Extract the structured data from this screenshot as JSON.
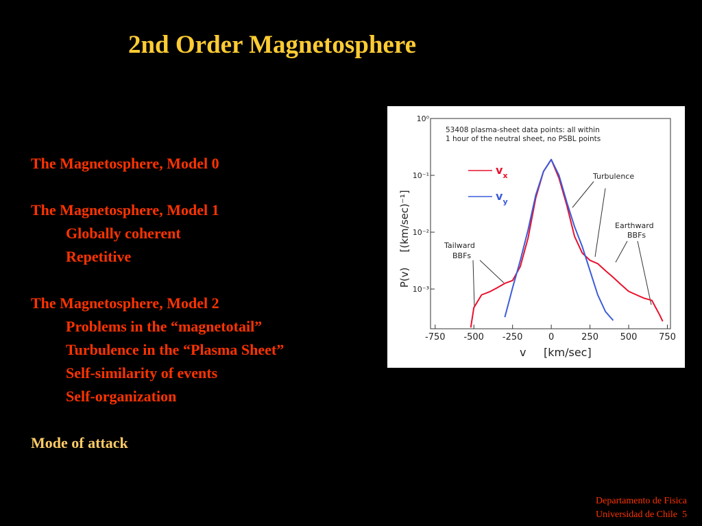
{
  "slide": {
    "title": "2nd Order Magnetosphere",
    "items": [
      {
        "text": "The Magnetosphere, Model 0",
        "sub": []
      },
      {
        "text": "The Magnetosphere, Model 1",
        "sub": [
          "Globally coherent",
          "Repetitive"
        ]
      },
      {
        "text": "The Magnetosphere, Model 2",
        "sub": [
          "Problems in the “magnetotail”",
          "Turbulence in the “Plasma Sheet”",
          "Self-similarity of events",
          "Self-organization"
        ]
      }
    ],
    "closing": "Mode of attack",
    "footer": [
      "Departamento de Fisica",
      "Universidad de Chile"
    ],
    "page_number": "5"
  },
  "chart_data": {
    "type": "line",
    "annotation": [
      "53408  plasma-sheet  data  points:  all  within",
      "1  hour  of  the  neutral  sheet,  no  PSBL  points"
    ],
    "callouts": {
      "turbulence": "Turbulence",
      "earthward": [
        "Earthward",
        "BBFs"
      ],
      "tailward": [
        "Tailward",
        "BBFs"
      ]
    },
    "ylabel": [
      "P(v)",
      "[(km/sec)⁻¹]"
    ],
    "xlabel": [
      "v",
      "[km/sec]"
    ],
    "log_y": true,
    "xlim": [
      -780,
      770
    ],
    "ylim": [
      0.0002,
      1
    ],
    "xticks": [
      -750,
      -500,
      -250,
      0,
      250,
      500,
      750
    ],
    "yticks": [
      {
        "value": 1,
        "label": "10⁰"
      },
      {
        "value": 0.1,
        "label": "10⁻¹"
      },
      {
        "value": 0.01,
        "label": "10⁻²"
      },
      {
        "value": 0.001,
        "label": "10⁻³"
      }
    ],
    "series": [
      {
        "name": "v",
        "subscript": "x",
        "color": "#e8112d",
        "x": [
          -520,
          -500,
          -450,
          -400,
          -350,
          -300,
          -250,
          -200,
          -150,
          -100,
          -50,
          0,
          50,
          100,
          150,
          200,
          250,
          300,
          350,
          400,
          450,
          500,
          550,
          600,
          650,
          700,
          720
        ],
        "values": [
          0.00021,
          0.00047,
          0.00079,
          0.00089,
          0.00105,
          0.00126,
          0.00141,
          0.0025,
          0.0079,
          0.04,
          0.117,
          0.19,
          0.089,
          0.03,
          0.0085,
          0.0043,
          0.0032,
          0.0028,
          0.0021,
          0.0016,
          0.0012,
          0.00091,
          0.00079,
          0.00069,
          0.00063,
          0.00035,
          0.00027
        ]
      },
      {
        "name": "v",
        "subscript": "y",
        "color": "#3b5bd9",
        "x": [
          -300,
          -250,
          -200,
          -150,
          -100,
          -50,
          0,
          50,
          100,
          150,
          200,
          250,
          300,
          350,
          400
        ],
        "values": [
          0.00032,
          0.00105,
          0.0032,
          0.011,
          0.045,
          0.117,
          0.19,
          0.1,
          0.034,
          0.0126,
          0.0056,
          0.0021,
          0.00079,
          0.0004,
          0.00028
        ]
      }
    ]
  }
}
